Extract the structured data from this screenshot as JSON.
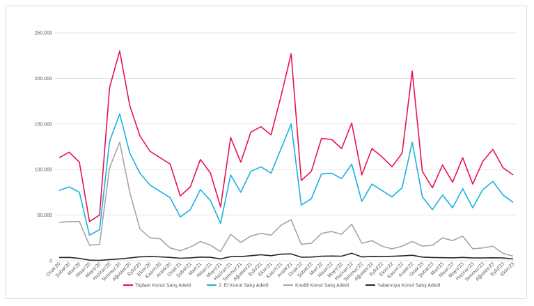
{
  "chart_data": {
    "type": "line",
    "title": "",
    "xlabel": "",
    "ylabel": "",
    "ylim": [
      0,
      250000
    ],
    "yticks": [
      "0",
      "50.000",
      "100.000",
      "150.000",
      "200.000",
      "250.000"
    ],
    "ytick_values": [
      0,
      50000,
      100000,
      150000,
      200000,
      250000
    ],
    "grid": "horizontal",
    "legend_position": "bottom",
    "categories": [
      "Ocak'20",
      "Şubat'20",
      "Mart'20",
      "Nisan'20",
      "Mayıs'20",
      "Haziran'20",
      "Temmuz'20",
      "Ağustos'20",
      "Eylül'20",
      "Ekim'20",
      "Kasım'20",
      "Aralık'20",
      "Ocak'21",
      "Şubat'21",
      "Mart'21",
      "Nisan'21",
      "Mayıs'21",
      "Haziran'21",
      "Temmuz'21",
      "Ağustos'21",
      "Eylül'21",
      "Ekim'21",
      "Kasım'21",
      "Aralık'21",
      "Ocak'22",
      "Şubat'22",
      "Mart'22",
      "Nisan'22",
      "Mayıs'22",
      "Haziran'22",
      "Temmuz'22",
      "Ağustos'22",
      "Eylül'22",
      "Ekim'22",
      "Kasım'22",
      "Aralık'22",
      "Ocak'23",
      "Şubat'23",
      "Mart'23",
      "Nisan'23",
      "Mayıs'23",
      "Haziran'23",
      "Temmuz'23",
      "Ağustos'23",
      "Eylül'23",
      "Ekim'23"
    ],
    "series": [
      {
        "name": "Toplam Konut Satış Adedi",
        "color": "#e8114e",
        "values": [
          113000,
          119000,
          108000,
          43000,
          50000,
          190000,
          230000,
          170000,
          137000,
          120000,
          113000,
          106000,
          71000,
          81000,
          111000,
          96000,
          59000,
          135000,
          108000,
          141000,
          147000,
          138000,
          181000,
          227000,
          88000,
          98000,
          134000,
          133000,
          123000,
          151000,
          94000,
          123000,
          114000,
          103000,
          118000,
          208000,
          98000,
          80000,
          105000,
          86000,
          113000,
          84000,
          109000,
          122000,
          102000,
          94000
        ]
      },
      {
        "name": "2. El Konut Satış Adedi",
        "color": "#1ab0e0",
        "values": [
          77000,
          81000,
          75000,
          28000,
          34000,
          131000,
          161000,
          118000,
          96000,
          83000,
          76000,
          69000,
          48000,
          56000,
          78000,
          66000,
          41000,
          94000,
          75000,
          98000,
          103000,
          96000,
          123000,
          150000,
          61000,
          68000,
          95000,
          96000,
          90000,
          106000,
          65000,
          84000,
          77000,
          70000,
          80000,
          130000,
          70000,
          56000,
          72000,
          58000,
          79000,
          58000,
          78000,
          87000,
          72000,
          64000
        ]
      },
      {
        "name": "Kredili Konut Satış Adedi",
        "color": "#a5a5a5",
        "values": [
          42000,
          43000,
          43000,
          17000,
          18000,
          102000,
          130000,
          75000,
          35000,
          25000,
          24000,
          14000,
          11000,
          15000,
          21000,
          17000,
          10000,
          29000,
          20000,
          27000,
          30000,
          28000,
          39000,
          45000,
          18000,
          19000,
          30000,
          32000,
          29000,
          40000,
          19000,
          22000,
          16000,
          13000,
          16000,
          21000,
          16000,
          17000,
          25000,
          22000,
          27000,
          13000,
          14000,
          16000,
          8000,
          5000
        ]
      },
      {
        "name": "Yabancıya Konut Satış Adedi",
        "color": "#262626",
        "values": [
          3500,
          3600,
          2500,
          600,
          400,
          1200,
          2000,
          3000,
          4300,
          4500,
          4200,
          3600,
          2700,
          3100,
          4000,
          3700,
          2000,
          4400,
          4400,
          5500,
          6500,
          5500,
          7200,
          7400,
          3800,
          4000,
          4900,
          5100,
          5000,
          8200,
          4100,
          4700,
          4500,
          4800,
          5300,
          6000,
          4000,
          3500,
          3300,
          3100,
          3600,
          3000,
          3000,
          3200,
          3000,
          2000
        ]
      }
    ]
  }
}
